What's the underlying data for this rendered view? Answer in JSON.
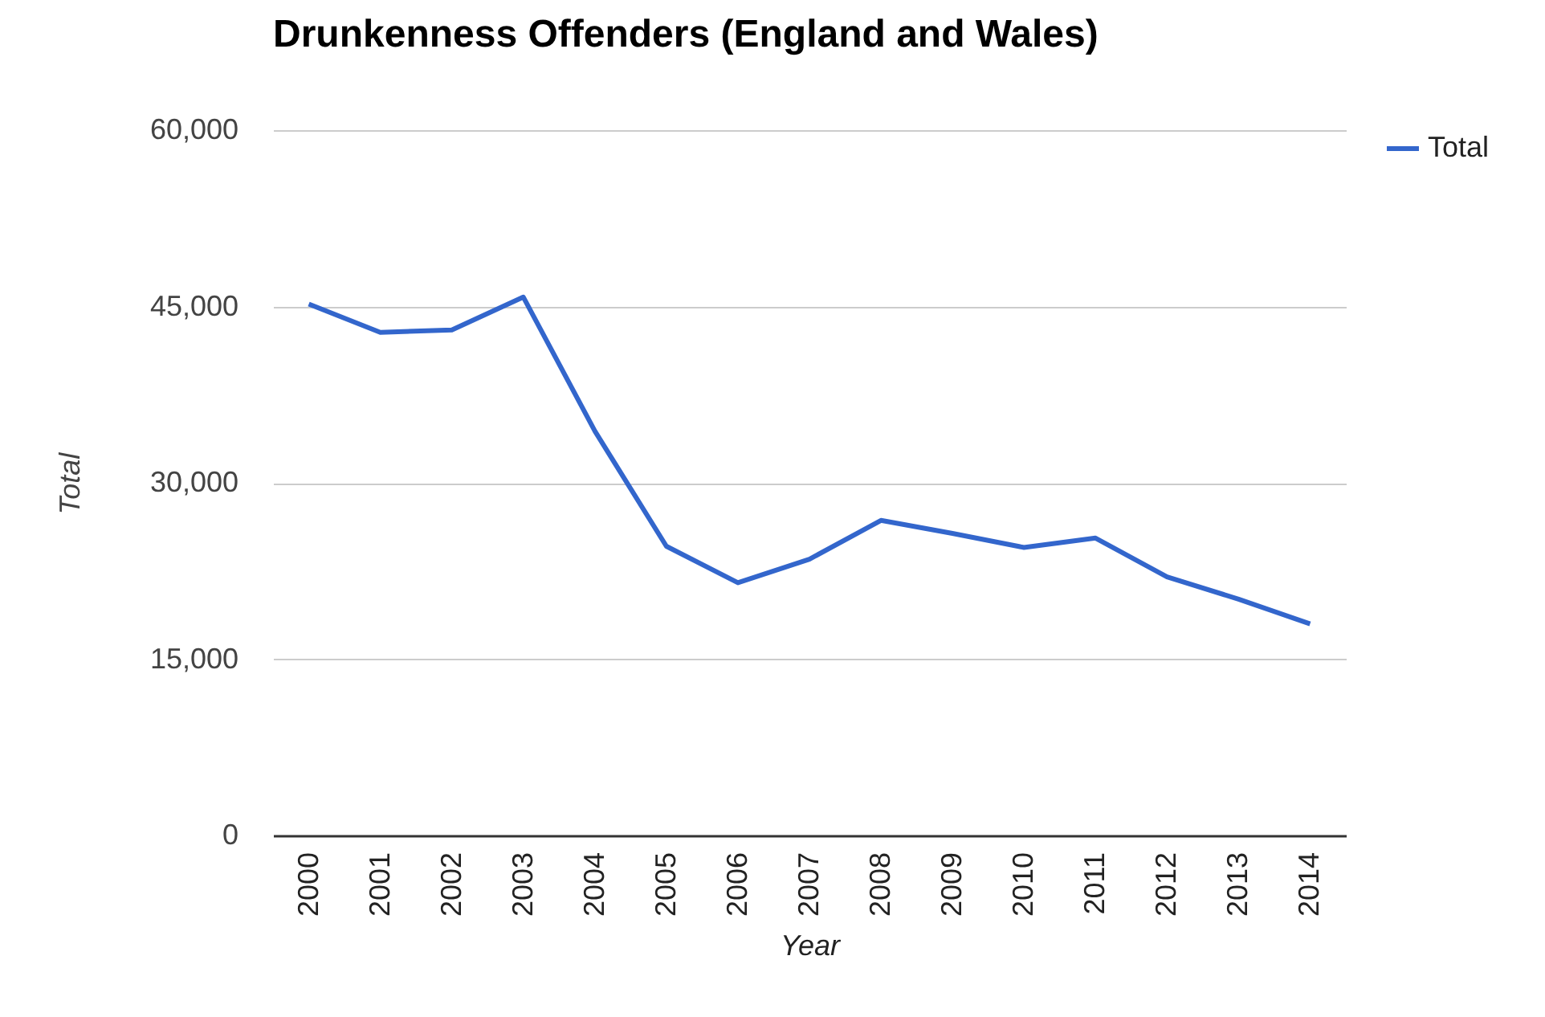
{
  "chart_data": {
    "type": "line",
    "title": "Drunkenness Offenders (England and Wales)",
    "xlabel": "Year",
    "ylabel": "Total",
    "categories": [
      "2000",
      "2001",
      "2002",
      "2003",
      "2004",
      "2005",
      "2006",
      "2007",
      "2008",
      "2009",
      "2010",
      "2011",
      "2012",
      "2013",
      "2014"
    ],
    "series": [
      {
        "name": "Total",
        "color": "#3366cc",
        "values": [
          45200,
          42800,
          43000,
          45800,
          34400,
          24600,
          21500,
          23500,
          26800,
          25700,
          24500,
          25300,
          22000,
          20100,
          18000
        ]
      }
    ],
    "ylim": [
      0,
      60000
    ],
    "yticks": [
      0,
      {
        "value": 15000,
        "label": "15,000"
      },
      {
        "value": 30000,
        "label": "30,000"
      },
      {
        "value": 45000,
        "label": "45,000"
      },
      {
        "value": 60000,
        "label": "60,000"
      }
    ],
    "grid": "y",
    "legend": "top right",
    "marker": "none",
    "line_style": "solid"
  }
}
